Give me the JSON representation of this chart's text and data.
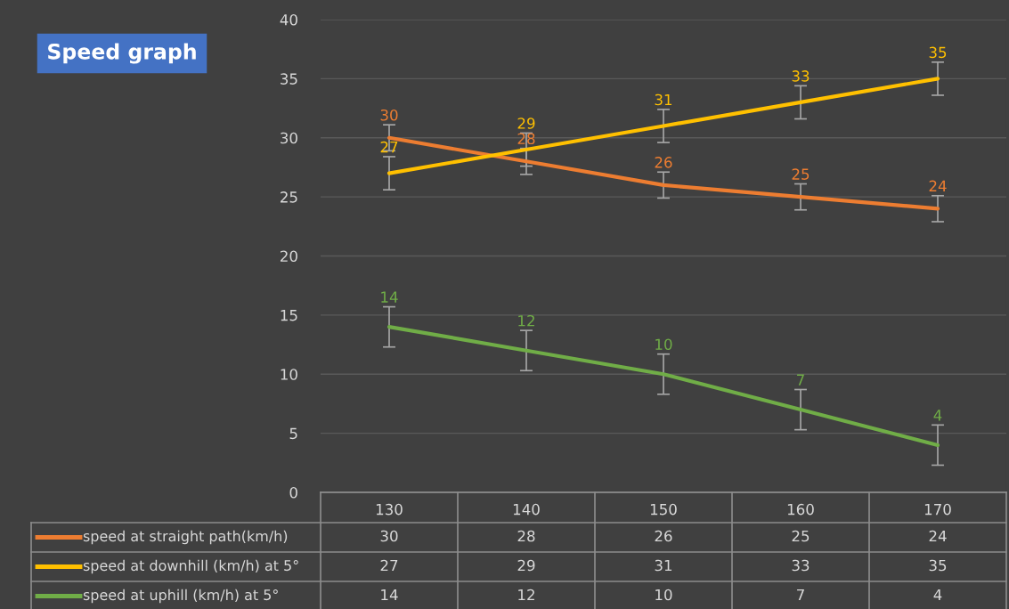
{
  "chart_data": {
    "type": "line",
    "title": "Speed graph",
    "categories": [
      "130",
      "140",
      "150",
      "160",
      "170"
    ],
    "series": [
      {
        "name": "speed at straight path(km/h)",
        "color": "#ed7d31",
        "values": [
          30,
          28,
          26,
          25,
          24
        ],
        "errors": [
          1.1,
          1.1,
          1.1,
          1.1,
          1.1
        ]
      },
      {
        "name": "speed at downhill (km/h) at 5°",
        "color": "#ffc000",
        "values": [
          27,
          29,
          31,
          33,
          35
        ],
        "errors": [
          1.4,
          1.4,
          1.4,
          1.4,
          1.4
        ]
      },
      {
        "name": "speed at uphill (km/h) at 5°",
        "color": "#70ad47",
        "values": [
          14,
          12,
          10,
          7,
          4
        ],
        "errors": [
          1.7,
          1.7,
          1.7,
          1.7,
          1.7
        ]
      }
    ],
    "annotations": [
      {
        "text": "30",
        "x": "130",
        "y": 30
      },
      {
        "text": "28",
        "x": "140",
        "y": 28
      },
      {
        "text": "26",
        "x": "150",
        "y": 26
      },
      {
        "text": "25",
        "x": "160",
        "y": 25
      },
      {
        "text": "24",
        "x": "170",
        "y": 24
      },
      {
        "text": "27",
        "x": "130",
        "y": 27
      },
      {
        "text": "29",
        "x": "140",
        "y": 29
      },
      {
        "text": "31",
        "x": "150",
        "y": 31
      },
      {
        "text": "33",
        "x": "160",
        "y": 33
      },
      {
        "text": "35",
        "x": "170",
        "y": 35
      },
      {
        "text": "14",
        "x": "130",
        "y": 14
      },
      {
        "text": "12",
        "x": "140",
        "y": 12
      },
      {
        "text": "10",
        "x": "150",
        "y": 10
      },
      {
        "text": "7",
        "x": "160",
        "y": 7
      },
      {
        "text": "4",
        "x": "170",
        "y": 4
      }
    ],
    "ylim": [
      0,
      40
    ],
    "yticks": [
      0,
      5,
      10,
      15,
      20,
      25,
      30,
      35,
      40
    ],
    "grid": "y",
    "legend": "bottom",
    "data_labels": true,
    "marker": "none",
    "line_style": "solid"
  }
}
